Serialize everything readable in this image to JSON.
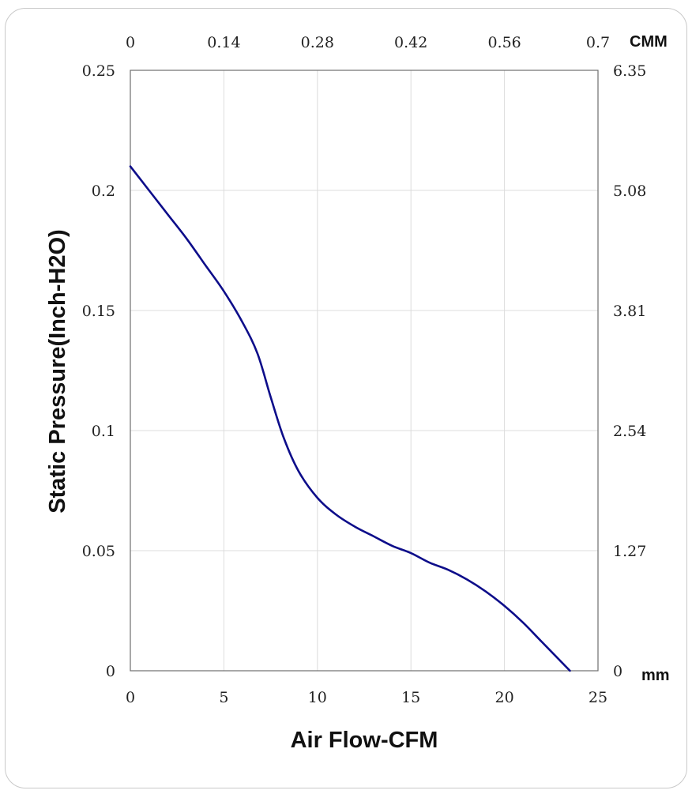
{
  "chart_data": {
    "type": "line",
    "xlabel": "Air Flow-CFM",
    "ylabel": "Static Pressure(Inch-H2O)",
    "xlim": [
      0,
      25
    ],
    "ylim": [
      0,
      0.25
    ],
    "x_ticks": [
      "0",
      "5",
      "10",
      "15",
      "20",
      "25"
    ],
    "y_ticks": [
      "0",
      "0.05",
      "0.1",
      "0.15",
      "0.2",
      "0.25"
    ],
    "x2_ticks": [
      "0",
      "0.14",
      "0.28",
      "0.42",
      "0.56",
      "0.7"
    ],
    "x2_unit": "CMM",
    "y2_ticks": [
      "0",
      "1.27",
      "2.54",
      "3.81",
      "5.08",
      "6.35"
    ],
    "y2_unit": "mm",
    "grid": true,
    "line_color": "#0d0d8a",
    "series": [
      {
        "x": [
          0,
          1,
          2,
          3,
          4,
          5,
          6,
          6.8,
          7.5,
          8.2,
          9,
          10,
          11,
          12,
          13,
          14,
          15,
          16,
          17,
          18,
          19,
          20,
          21,
          22,
          23.5
        ],
        "y": [
          0.21,
          0.2,
          0.19,
          0.18,
          0.169,
          0.158,
          0.145,
          0.132,
          0.114,
          0.097,
          0.083,
          0.072,
          0.065,
          0.06,
          0.056,
          0.052,
          0.049,
          0.045,
          0.042,
          0.038,
          0.033,
          0.027,
          0.02,
          0.012,
          0.0
        ]
      }
    ]
  }
}
